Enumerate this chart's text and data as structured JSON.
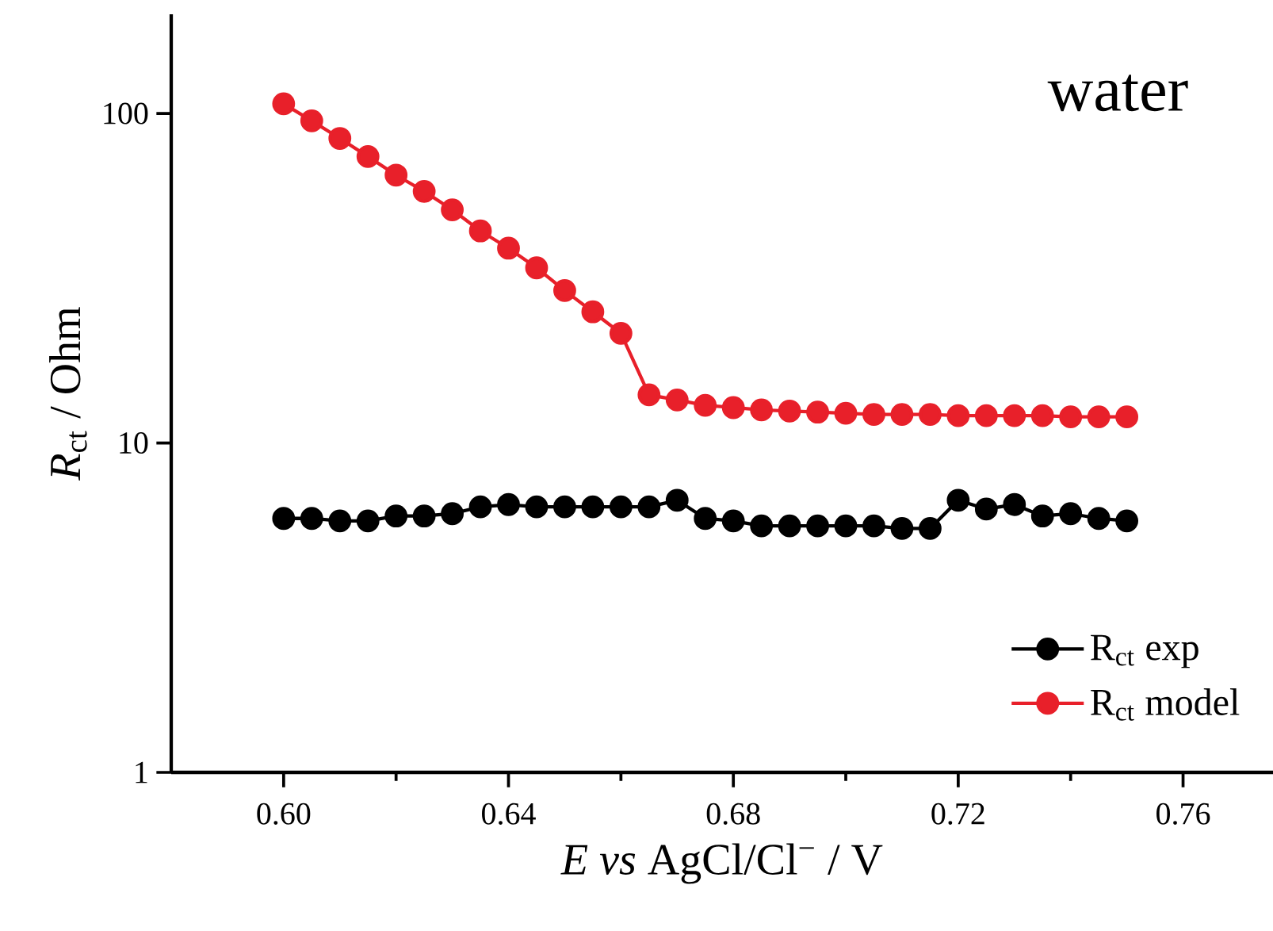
{
  "chart_data": {
    "type": "line",
    "xlabel": "*E vs* AgCl/Cl$^{−}$ / V",
    "ylabel": "*R*$_{ct}$ / Ohm",
    "annotations": [
      "water"
    ],
    "x": [
      0.6,
      0.605,
      0.61,
      0.615,
      0.62,
      0.625,
      0.63,
      0.635,
      0.64,
      0.645,
      0.65,
      0.655,
      0.66,
      0.665,
      0.67,
      0.675,
      0.68,
      0.685,
      0.69,
      0.695,
      0.7,
      0.705,
      0.71,
      0.715,
      0.72,
      0.725,
      0.73,
      0.735,
      0.74,
      0.745,
      0.75
    ],
    "series": [
      {
        "name": "R$_{ct}$ exp",
        "color": "#000000",
        "values": [
          5.9,
          5.9,
          5.8,
          5.8,
          6.0,
          6.0,
          6.1,
          6.4,
          6.5,
          6.4,
          6.4,
          6.4,
          6.4,
          6.4,
          6.7,
          5.9,
          5.8,
          5.6,
          5.6,
          5.6,
          5.6,
          5.6,
          5.5,
          5.5,
          6.7,
          6.3,
          6.5,
          6.0,
          6.1,
          5.9,
          5.8
        ]
      },
      {
        "name": "R$_{ct}$ model",
        "color": "#e8202a",
        "values": [
          107,
          95,
          84,
          74,
          65,
          58,
          51,
          44,
          39,
          34,
          29,
          25,
          21.5,
          14.0,
          13.5,
          13.0,
          12.8,
          12.6,
          12.5,
          12.4,
          12.3,
          12.2,
          12.2,
          12.2,
          12.1,
          12.1,
          12.1,
          12.1,
          12.0,
          12.0,
          12.0
        ]
      }
    ],
    "xlim": [
      0.58,
      0.776
    ],
    "ylim": [
      1,
      200
    ],
    "log": "y",
    "xticks": [
      {
        "value": 0.6,
        "label": "0.60"
      },
      {
        "value": 0.64,
        "label": "0.64"
      },
      {
        "value": 0.68,
        "label": "0.68"
      },
      {
        "value": 0.72,
        "label": "0.72"
      },
      {
        "value": 0.76,
        "label": "0.76"
      }
    ],
    "yticks": [
      1,
      10,
      100
    ],
    "marker": "circle",
    "line_style": "solid",
    "legend": "bottom right"
  }
}
